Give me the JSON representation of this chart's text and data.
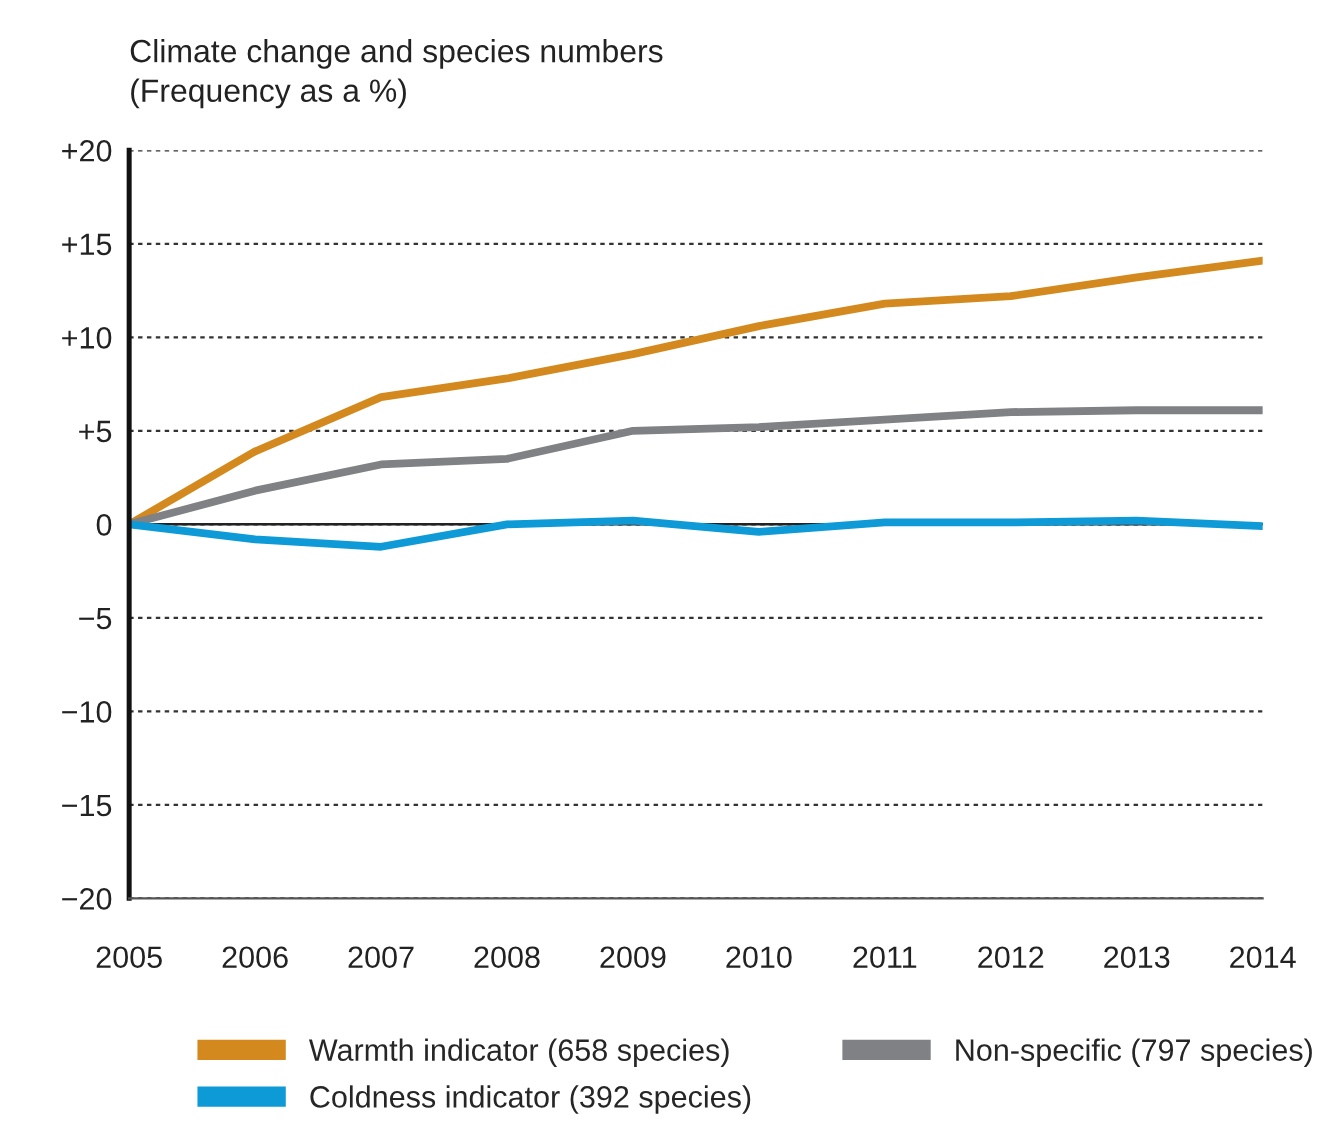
{
  "chart_data": {
    "type": "line",
    "title": "Climate change and species numbers",
    "subtitle": "(Frequency as a %)",
    "x": [
      2005,
      2006,
      2007,
      2008,
      2009,
      2010,
      2011,
      2012,
      2013,
      2014
    ],
    "series": [
      {
        "name": "Warmth indicator (658 species)",
        "color": "#d4891e",
        "values": [
          0,
          3.9,
          6.8,
          7.8,
          9.1,
          10.6,
          11.8,
          12.2,
          13.2,
          14.1
        ]
      },
      {
        "name": "Non-specific (797 species)",
        "color": "#808184",
        "values": [
          0,
          1.8,
          3.2,
          3.5,
          5.0,
          5.2,
          5.6,
          6.0,
          6.1,
          6.1
        ]
      },
      {
        "name": "Coldness indicator (392 species)",
        "color": "#0e9ad7",
        "values": [
          0,
          -0.8,
          -1.2,
          0,
          0.2,
          -0.4,
          0.1,
          0.1,
          0.2,
          -0.1
        ]
      }
    ],
    "xlim": [
      2005,
      2014
    ],
    "xticks": [
      2005,
      2006,
      2007,
      2008,
      2009,
      2010,
      2011,
      2012,
      2013,
      2014
    ],
    "ylim": [
      -20,
      20
    ],
    "yticks": [
      {
        "value": -20,
        "label": "−20"
      },
      {
        "value": -15,
        "label": "−15"
      },
      {
        "value": -10,
        "label": "−10"
      },
      {
        "value": -5,
        "label": "−5"
      },
      0,
      {
        "value": 5,
        "label": "+5"
      },
      {
        "value": 10,
        "label": "+10"
      },
      {
        "value": 15,
        "label": "+15"
      },
      {
        "value": 20,
        "label": "+20"
      }
    ],
    "ref_lines": [
      {
        "axis": "y",
        "value": 0,
        "color": "#222222"
      }
    ],
    "grid": "y",
    "legend": "bottom",
    "marker": "none",
    "line_style": "solid"
  }
}
